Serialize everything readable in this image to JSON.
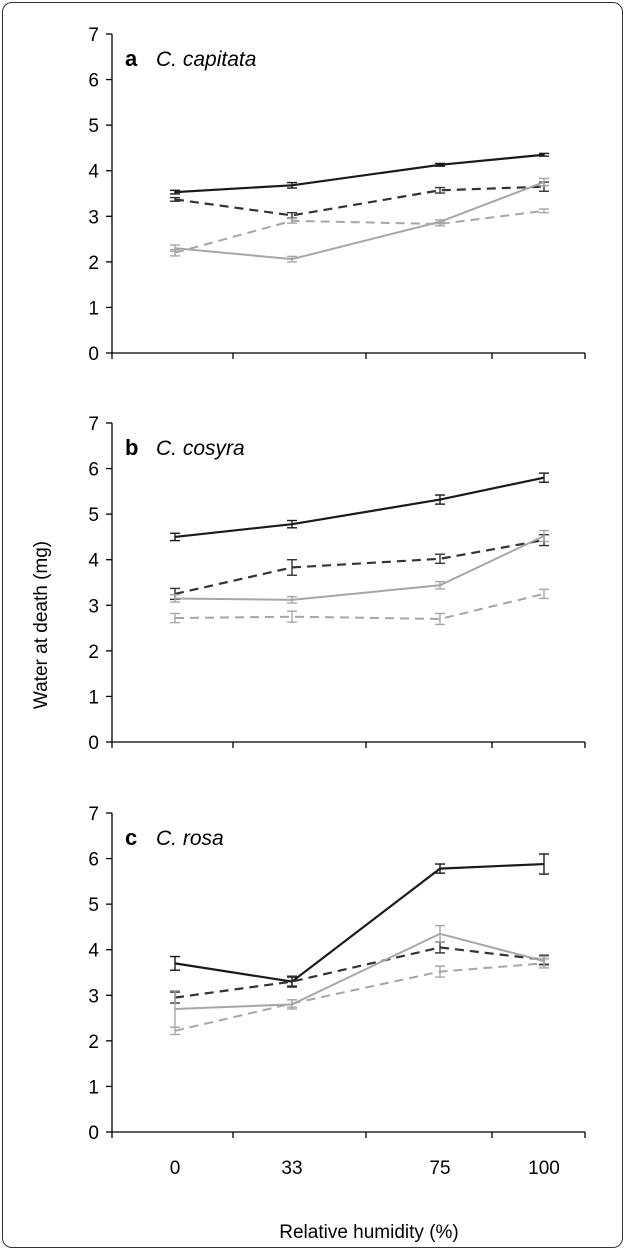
{
  "chart_data": [
    {
      "type": "line",
      "panel_letter": "a",
      "species": "C. capitata",
      "xlabel": "Relative humidity (%)",
      "ylabel": "Water at death (mg)",
      "categories": [
        "0",
        "33",
        "75",
        "100"
      ],
      "ylim": [
        0,
        7
      ],
      "yticks": [
        0,
        1,
        2,
        3,
        4,
        5,
        6,
        7
      ],
      "series": [
        {
          "style": "solid-black",
          "color": "#1a1a1a",
          "values": [
            3.53,
            3.68,
            4.13,
            4.35
          ],
          "errors": [
            0.04,
            0.06,
            0.03,
            0.03
          ]
        },
        {
          "style": "dashed-black",
          "color": "#333333",
          "values": [
            3.37,
            3.02,
            3.57,
            3.65
          ],
          "errors": [
            0.04,
            0.06,
            0.06,
            0.1
          ]
        },
        {
          "style": "solid-gray",
          "color": "#a6a6a6",
          "values": [
            2.3,
            2.06,
            2.88,
            3.75
          ],
          "errors": [
            0.07,
            0.06,
            0.04,
            0.08
          ]
        },
        {
          "style": "dashed-gray",
          "color": "#a6a6a6",
          "values": [
            2.2,
            2.9,
            2.83,
            3.12
          ],
          "errors": [
            0.07,
            0.05,
            0.04,
            0.04
          ]
        }
      ]
    },
    {
      "type": "line",
      "panel_letter": "b",
      "species": "C. cosyra",
      "categories": [
        "0",
        "33",
        "75",
        "100"
      ],
      "ylim": [
        0,
        7
      ],
      "yticks": [
        0,
        1,
        2,
        3,
        4,
        5,
        6,
        7
      ],
      "series": [
        {
          "style": "solid-black",
          "color": "#1a1a1a",
          "values": [
            4.5,
            4.78,
            5.32,
            5.8
          ],
          "errors": [
            0.08,
            0.08,
            0.1,
            0.1
          ]
        },
        {
          "style": "dashed-black",
          "color": "#333333",
          "values": [
            3.25,
            3.83,
            4.02,
            4.43
          ],
          "errors": [
            0.12,
            0.17,
            0.1,
            0.12
          ]
        },
        {
          "style": "solid-gray",
          "color": "#a6a6a6",
          "values": [
            3.15,
            3.12,
            3.44,
            4.52
          ],
          "errors": [
            0.08,
            0.07,
            0.08,
            0.12
          ]
        },
        {
          "style": "dashed-gray",
          "color": "#a6a6a6",
          "values": [
            2.72,
            2.75,
            2.7,
            3.25
          ],
          "errors": [
            0.1,
            0.12,
            0.12,
            0.1
          ]
        }
      ]
    },
    {
      "type": "line",
      "panel_letter": "c",
      "species": "C. rosa",
      "categories": [
        "0",
        "33",
        "75",
        "100"
      ],
      "ylim": [
        0,
        7
      ],
      "yticks": [
        0,
        1,
        2,
        3,
        4,
        5,
        6,
        7
      ],
      "series": [
        {
          "style": "solid-black",
          "color": "#1a1a1a",
          "values": [
            3.7,
            3.3,
            5.78,
            5.88
          ],
          "errors": [
            0.15,
            0.1,
            0.1,
            0.22
          ]
        },
        {
          "style": "dashed-black",
          "color": "#333333",
          "values": [
            2.95,
            3.3,
            4.05,
            3.78
          ],
          "errors": [
            0.12,
            0.12,
            0.12,
            0.1
          ]
        },
        {
          "style": "solid-gray",
          "color": "#a6a6a6",
          "values": [
            2.7,
            2.8,
            4.35,
            3.75
          ],
          "errors": [
            0.4,
            0.1,
            0.18,
            0.1
          ]
        },
        {
          "style": "dashed-gray",
          "color": "#a6a6a6",
          "values": [
            2.22,
            2.82,
            3.52,
            3.7
          ],
          "errors": [
            0.08,
            0.08,
            0.12,
            0.1
          ]
        }
      ]
    }
  ]
}
